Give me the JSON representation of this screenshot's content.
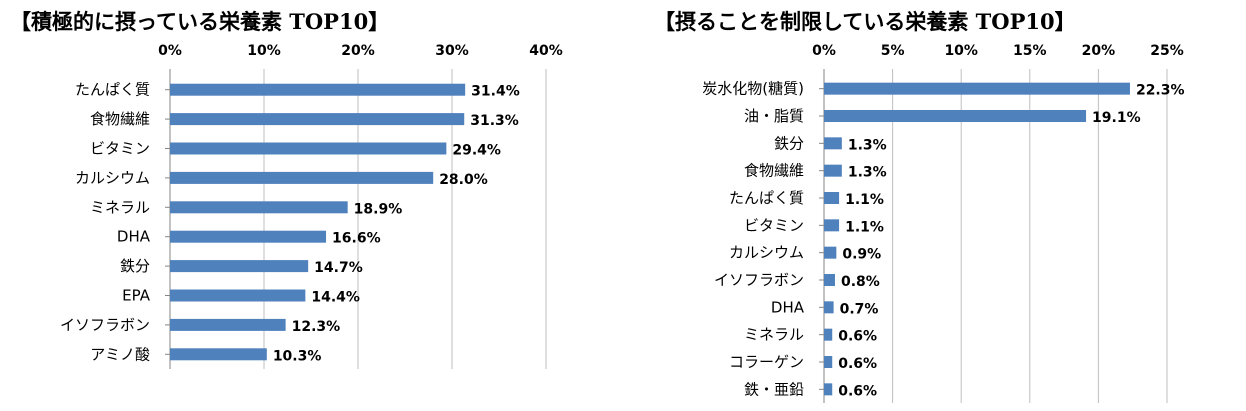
{
  "chart_data": [
    {
      "type": "bar",
      "orientation": "horizontal",
      "title": "【積極的に摂っている栄養素 TOP10】",
      "xlim": [
        0,
        40
      ],
      "xticks": [
        "0%",
        "10%",
        "20%",
        "30%",
        "40%"
      ],
      "grid": true,
      "categories": [
        "たんぱく質",
        "食物繊維",
        "ビタミン",
        "カルシウム",
        "ミネラル",
        "DHA",
        "鉄分",
        "EPA",
        "イソフラボン",
        "アミノ酸"
      ],
      "values": [
        31.4,
        31.3,
        29.4,
        28.0,
        18.9,
        16.6,
        14.7,
        14.4,
        12.3,
        10.3
      ],
      "labels": [
        "31.4%",
        "31.3%",
        "29.4%",
        "28.0%",
        "18.9%",
        "16.6%",
        "14.7%",
        "14.4%",
        "12.3%",
        "10.3%"
      ],
      "color": "#4f81bd"
    },
    {
      "type": "bar",
      "orientation": "horizontal",
      "title": "【摂ることを制限している栄養素 TOP10】",
      "xlim": [
        0,
        25
      ],
      "xticks": [
        "0%",
        "5%",
        "10%",
        "15%",
        "20%",
        "25%"
      ],
      "grid": true,
      "categories": [
        "炭水化物(糖質)",
        "油・脂質",
        "鉄分",
        "食物繊維",
        "たんぱく質",
        "ビタミン",
        "カルシウム",
        "イソフラボン",
        "DHA",
        "ミネラル",
        "コラーゲン",
        "鉄・亜鉛"
      ],
      "values": [
        22.3,
        19.1,
        1.3,
        1.3,
        1.1,
        1.1,
        0.9,
        0.8,
        0.7,
        0.6,
        0.6,
        0.6
      ],
      "labels": [
        "22.3%",
        "19.1%",
        "1.3%",
        "1.3%",
        "1.1%",
        "1.1%",
        "0.9%",
        "0.8%",
        "0.7%",
        "0.6%",
        "0.6%",
        "0.6%"
      ],
      "color": "#4f81bd"
    }
  ]
}
